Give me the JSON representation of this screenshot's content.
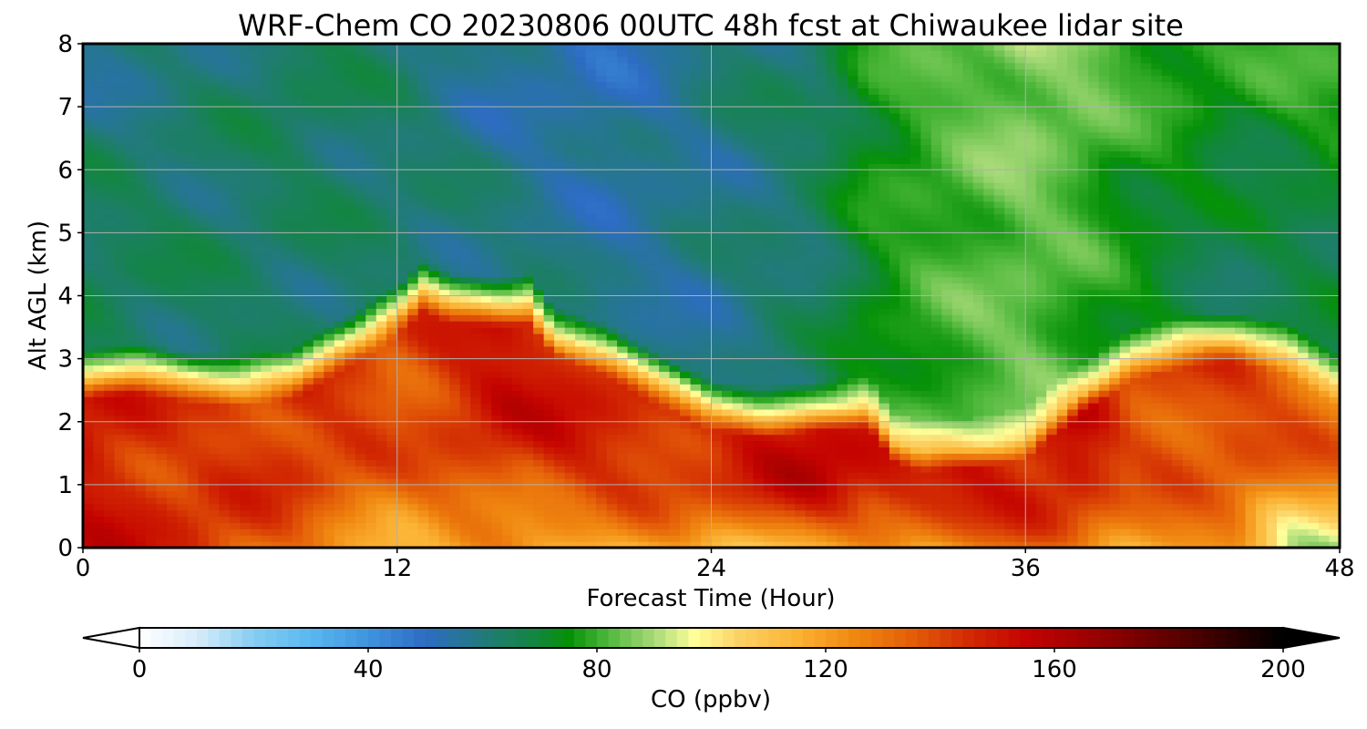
{
  "chart_data": {
    "type": "heatmap",
    "title": "WRF-Chem CO  20230806 00UTC 48h fcst at Chiwaukee lidar site",
    "xlabel": "Forecast Time (Hour)",
    "ylabel": "Alt AGL (km)",
    "xlim": [
      0,
      48
    ],
    "ylim": [
      0,
      8
    ],
    "xticks": [
      0,
      12,
      24,
      36,
      48
    ],
    "yticks": [
      0,
      1,
      2,
      3,
      4,
      5,
      6,
      7,
      8
    ],
    "grid": true,
    "colorbar": {
      "label": "CO  (ppbv)",
      "min": 0,
      "max": 200,
      "ticks": [
        0,
        40,
        80,
        120,
        160,
        200
      ],
      "extend": "both",
      "color_stops": [
        {
          "value": 0,
          "color": "#ffffff"
        },
        {
          "value": 10,
          "color": "#d8ecfa"
        },
        {
          "value": 20,
          "color": "#86cdf2"
        },
        {
          "value": 30,
          "color": "#58b8f0"
        },
        {
          "value": 40,
          "color": "#3f94dd"
        },
        {
          "value": 50,
          "color": "#2d6cc4"
        },
        {
          "value": 60,
          "color": "#227a7c"
        },
        {
          "value": 70,
          "color": "#11873a"
        },
        {
          "value": 75,
          "color": "#059107"
        },
        {
          "value": 82,
          "color": "#4fb83c"
        },
        {
          "value": 90,
          "color": "#a8da78"
        },
        {
          "value": 97,
          "color": "#ffff9a"
        },
        {
          "value": 105,
          "color": "#fcd163"
        },
        {
          "value": 115,
          "color": "#fbb334"
        },
        {
          "value": 125,
          "color": "#f08810"
        },
        {
          "value": 135,
          "color": "#e45e08"
        },
        {
          "value": 145,
          "color": "#d22a03"
        },
        {
          "value": 155,
          "color": "#c50300"
        },
        {
          "value": 170,
          "color": "#8c0000"
        },
        {
          "value": 185,
          "color": "#4a0000"
        },
        {
          "value": 200,
          "color": "#000000"
        }
      ]
    },
    "boundary_layer_top_km": {
      "hours": [
        0,
        2,
        4,
        6,
        8,
        10,
        12,
        13,
        14,
        16,
        17,
        18,
        20,
        22,
        24,
        26,
        28,
        30,
        31,
        32,
        34,
        36,
        37,
        38,
        40,
        42,
        44,
        46,
        48
      ],
      "heights": [
        2.6,
        2.7,
        2.55,
        2.5,
        2.6,
        3.1,
        3.6,
        4.0,
        3.8,
        3.75,
        3.8,
        3.3,
        3.0,
        2.5,
        2.1,
        2.0,
        2.1,
        2.15,
        1.6,
        1.45,
        1.5,
        1.65,
        2.0,
        2.3,
        2.9,
        3.1,
        3.2,
        3.0,
        2.5
      ]
    },
    "free_troposphere_km5": {
      "hours": [
        0,
        4,
        8,
        12,
        16,
        20,
        24,
        28,
        30,
        32,
        34,
        36,
        38,
        40,
        44,
        48
      ],
      "values": [
        66,
        64,
        63,
        63,
        60,
        56,
        58,
        64,
        74,
        79,
        82,
        84,
        80,
        74,
        66,
        68
      ]
    },
    "free_troposphere_km7_5": {
      "hours": [
        0,
        4,
        8,
        12,
        16,
        20,
        24,
        28,
        30,
        32,
        34,
        36,
        38,
        40,
        44,
        48
      ],
      "values": [
        58,
        60,
        66,
        62,
        55,
        52,
        60,
        64,
        76,
        80,
        84,
        88,
        86,
        80,
        76,
        80
      ]
    },
    "surface_layer_ppbv": {
      "hours": [
        0,
        4,
        8,
        12,
        16,
        20,
        24,
        28,
        32,
        36,
        40,
        44,
        46,
        48
      ],
      "values": [
        150,
        148,
        130,
        118,
        118,
        116,
        115,
        118,
        120,
        128,
        122,
        125,
        95,
        90
      ]
    },
    "core_maximum_ppbv": {
      "hours": [
        0,
        4,
        8,
        12,
        16,
        20,
        24,
        28,
        32,
        36,
        38,
        40,
        44,
        48
      ],
      "values": [
        152,
        140,
        145,
        138,
        152,
        148,
        144,
        156,
        150,
        150,
        155,
        138,
        140,
        132
      ]
    }
  }
}
